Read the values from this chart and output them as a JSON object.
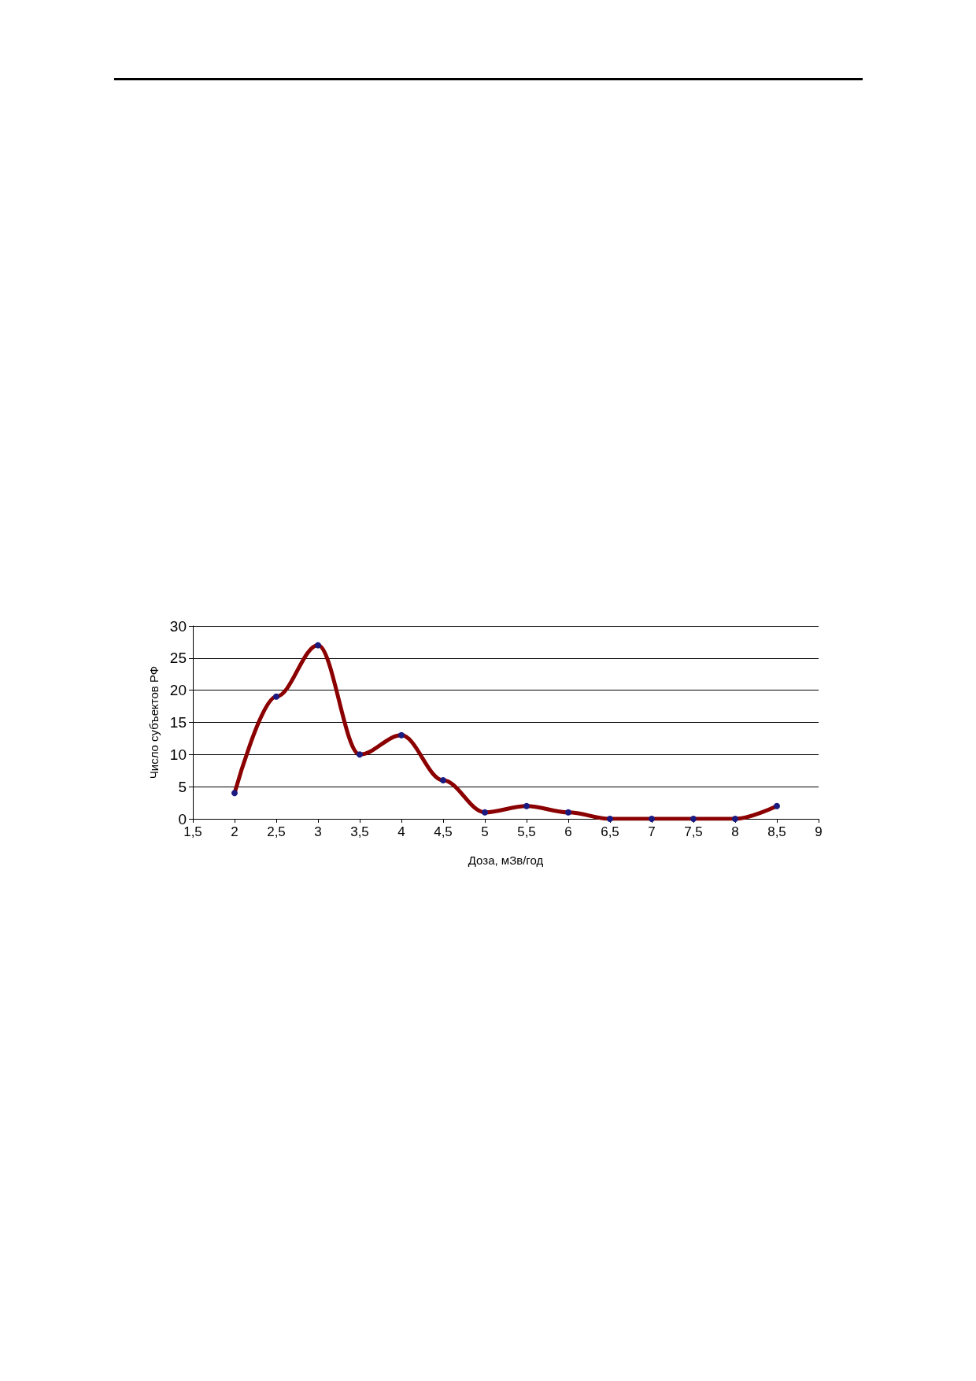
{
  "chart_data": {
    "type": "line",
    "xlabel": "Доза, мЗв/год",
    "ylabel": "Число субъектов РФ",
    "x": [
      2,
      2.5,
      3,
      3.5,
      4,
      4.5,
      5,
      5.5,
      6,
      6.5,
      7,
      7.5,
      8,
      8.5
    ],
    "series": [
      {
        "color": "#8b0000",
        "values": [
          4,
          19,
          27,
          10,
          13,
          6,
          1,
          2,
          1,
          0,
          0,
          0,
          0,
          2
        ]
      }
    ],
    "marker": "circle",
    "line_style": "solid",
    "grid": "y",
    "xlim": [
      1.5,
      9
    ],
    "xticks": [
      {
        "value": 1.5,
        "label": "1,5"
      },
      2,
      {
        "value": 2.5,
        "label": "2,5"
      },
      3,
      {
        "value": 3.5,
        "label": "3,5"
      },
      4,
      {
        "value": 4.5,
        "label": "4,5"
      },
      5,
      {
        "value": 5.5,
        "label": "5,5"
      },
      6,
      {
        "value": 6.5,
        "label": "6,5"
      },
      7,
      {
        "value": 7.5,
        "label": "7,5"
      },
      8,
      {
        "value": 8.5,
        "label": "8,5"
      },
      9
    ],
    "ylim": [
      0,
      30
    ],
    "yticks": [
      0,
      5,
      10,
      15,
      20,
      25,
      30
    ]
  }
}
